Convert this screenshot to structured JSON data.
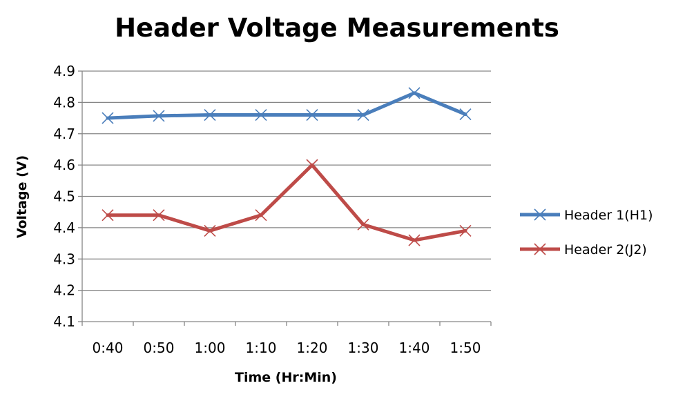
{
  "chart_data": {
    "type": "line",
    "title": "Header Voltage Measurements",
    "xlabel": "Time (Hr:Min)",
    "ylabel": "Voltage (V)",
    "categories": [
      "0:40",
      "0:50",
      "1:00",
      "1:10",
      "1:20",
      "1:30",
      "1:40",
      "1:50"
    ],
    "ylim": [
      4.1,
      4.9
    ],
    "yticks": [
      "4.1",
      "4.2",
      "4.3",
      "4.4",
      "4.5",
      "4.6",
      "4.7",
      "4.8",
      "4.9"
    ],
    "grid": true,
    "legend_position": "right",
    "series": [
      {
        "name": "Header 1(H1)",
        "color": "#4A7EBB",
        "marker": "x",
        "values": [
          4.75,
          4.757,
          4.76,
          4.76,
          4.76,
          4.76,
          4.83,
          4.762
        ]
      },
      {
        "name": "Header 2(J2)",
        "color": "#BE4B48",
        "marker": "x",
        "values": [
          4.44,
          4.44,
          4.39,
          4.44,
          4.6,
          4.41,
          4.36,
          4.39
        ]
      }
    ]
  }
}
